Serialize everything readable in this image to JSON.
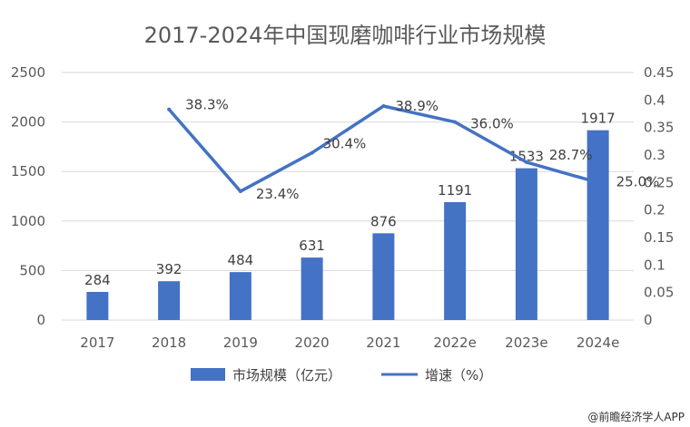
{
  "chart_data": {
    "type": "bar+line",
    "title": "2017-2024年中国现磨咖啡行业市场规模",
    "categories": [
      "2017",
      "2018",
      "2019",
      "2020",
      "2021",
      "2022e",
      "2023e",
      "2024e"
    ],
    "series": [
      {
        "name": "市场规模（亿元）",
        "type": "bar",
        "axis": "left",
        "values": [
          284,
          392,
          484,
          631,
          876,
          1191,
          1533,
          1917
        ],
        "labels": [
          "284",
          "392",
          "484",
          "631",
          "876",
          "1191",
          "1533",
          "1917"
        ],
        "color": "#4472C4"
      },
      {
        "name": "增速（%）",
        "type": "line",
        "axis": "right",
        "values": [
          null,
          0.383,
          0.234,
          0.304,
          0.389,
          0.36,
          0.287,
          0.25
        ],
        "labels": [
          "",
          "38.3%",
          "23.4%",
          "30.4%",
          "38.9%",
          "36.0%",
          "28.7%",
          "25.0%"
        ],
        "color": "#4472C4"
      }
    ],
    "y_left": {
      "ylim": [
        0,
        2500
      ],
      "ticks": [
        "0",
        "500",
        "1000",
        "1500",
        "2000",
        "2500"
      ]
    },
    "y_right": {
      "ylim": [
        0,
        0.45
      ],
      "ticks": [
        "0",
        "0.05",
        "0.1",
        "0.15",
        "0.2",
        "0.25",
        "0.3",
        "0.35",
        "0.4",
        "0.45"
      ]
    },
    "grid": true,
    "legend_position": "bottom"
  },
  "watermark": "@前瞻经济学人APP"
}
